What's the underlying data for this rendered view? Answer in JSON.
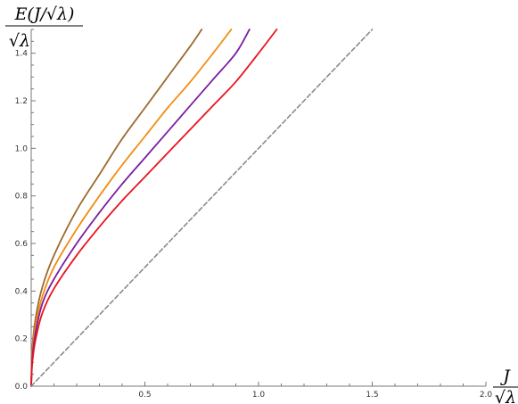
{
  "chart_data": {
    "type": "line",
    "xlim": [
      0,
      2.0
    ],
    "ylim": [
      0,
      1.5
    ],
    "x_ticks": [
      0.5,
      1.0,
      1.5,
      2.0
    ],
    "x_tick_labels": [
      "0.5",
      "1.0",
      "1.5",
      "2.0"
    ],
    "y_ticks": [
      0.0,
      0.2,
      0.4,
      0.6,
      0.8,
      1.0,
      1.2,
      1.4
    ],
    "y_tick_labels": [
      "0.0",
      "0.2",
      "0.4",
      "0.6",
      "0.8",
      "1.0",
      "1.2",
      "1.4"
    ],
    "xlabel": {
      "numerator": "J",
      "denominator": "√λ"
    },
    "ylabel": {
      "numerator": "E(J/√λ)",
      "denominator": "√λ"
    },
    "grid": false,
    "legend": null,
    "series": [
      {
        "color": "#9B6A2F",
        "style": "solid",
        "x": [
          0,
          0.005,
          0.02,
          0.05,
          0.1,
          0.2,
          0.3,
          0.4,
          0.5,
          0.6,
          0.7,
          0.75
        ],
        "y": [
          0,
          0.16,
          0.29,
          0.42,
          0.55,
          0.74,
          0.89,
          1.04,
          1.17,
          1.3,
          1.43,
          1.5
        ]
      },
      {
        "color": "#F28C0F",
        "style": "solid",
        "x": [
          0,
          0.005,
          0.02,
          0.05,
          0.1,
          0.2,
          0.3,
          0.4,
          0.5,
          0.6,
          0.7,
          0.8,
          0.88
        ],
        "y": [
          0,
          0.14,
          0.26,
          0.38,
          0.5,
          0.66,
          0.8,
          0.93,
          1.05,
          1.17,
          1.28,
          1.4,
          1.5
        ]
      },
      {
        "color": "#7A1FA0",
        "style": "solid",
        "x": [
          0,
          0.005,
          0.02,
          0.05,
          0.1,
          0.2,
          0.3,
          0.4,
          0.5,
          0.6,
          0.7,
          0.8,
          0.9,
          0.96
        ],
        "y": [
          0,
          0.12,
          0.23,
          0.35,
          0.45,
          0.6,
          0.73,
          0.85,
          0.96,
          1.07,
          1.18,
          1.29,
          1.4,
          1.5
        ]
      },
      {
        "color": "#E8141E",
        "style": "solid",
        "x": [
          0,
          0.005,
          0.02,
          0.05,
          0.1,
          0.2,
          0.3,
          0.4,
          0.5,
          0.6,
          0.7,
          0.8,
          0.9,
          1.0,
          1.08
        ],
        "y": [
          0,
          0.1,
          0.2,
          0.31,
          0.41,
          0.55,
          0.67,
          0.78,
          0.88,
          0.98,
          1.08,
          1.18,
          1.28,
          1.4,
          1.5
        ]
      },
      {
        "color": "#8A8A8A",
        "style": "dashed",
        "x": [
          0,
          1.5
        ],
        "y": [
          0,
          1.5
        ]
      }
    ]
  }
}
